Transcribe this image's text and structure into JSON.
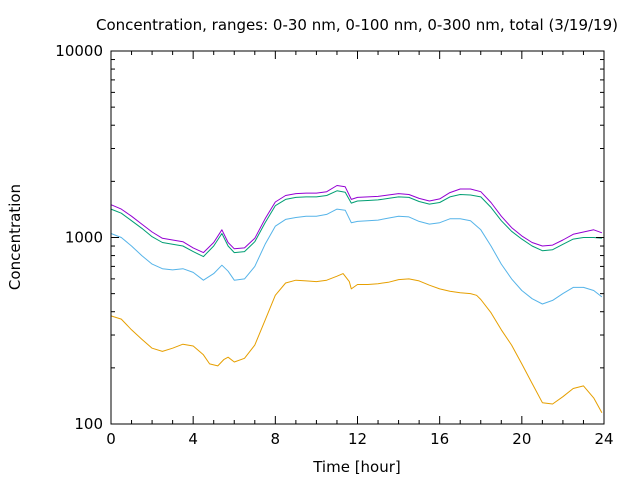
{
  "chart_data": {
    "type": "line",
    "title": "Concentration, ranges: 0-30 nm, 0-100 nm, 0-300 nm, total (3/19/19)",
    "xlabel": "Time [hour]",
    "ylabel": "Concentration",
    "xlim": [
      0,
      24
    ],
    "ylim": [
      100,
      10000
    ],
    "yscale": "log",
    "grid": false,
    "xticks": [
      "0",
      "4",
      "8",
      "12",
      "16",
      "20",
      "24"
    ],
    "yticks": [
      "100",
      "1000",
      "10000"
    ],
    "series": [
      {
        "color": "#e69f00",
        "x": [
          0,
          0.5,
          1,
          1.5,
          2,
          2.5,
          3,
          3.5,
          4,
          4.5,
          4.8,
          5.2,
          5.5,
          5.7,
          6,
          6.5,
          7,
          7.5,
          8,
          8.5,
          9,
          9.5,
          10,
          10.5,
          11,
          11.3,
          11.6,
          11.7,
          12,
          12.5,
          13,
          13.5,
          14,
          14.5,
          15,
          15.5,
          16,
          16.5,
          17,
          17.5,
          17.8,
          18,
          18.5,
          19,
          19.5,
          20,
          20.5,
          21,
          21.5,
          22,
          22.5,
          23,
          23.5,
          23.9
        ],
        "values": [
          380,
          365,
          320,
          285,
          255,
          245,
          255,
          268,
          262,
          235,
          210,
          205,
          222,
          228,
          215,
          225,
          265,
          360,
          490,
          570,
          590,
          585,
          580,
          590,
          620,
          640,
          580,
          530,
          560,
          560,
          565,
          575,
          595,
          600,
          585,
          555,
          530,
          515,
          505,
          500,
          490,
          465,
          395,
          320,
          265,
          210,
          165,
          130,
          128,
          140,
          155,
          160,
          138,
          115
        ]
      },
      {
        "color": "#56b4e9",
        "x": [
          0,
          0.5,
          1,
          1.5,
          2,
          2.5,
          3,
          3.5,
          4,
          4.5,
          5,
          5.4,
          5.7,
          6,
          6.5,
          7,
          7.5,
          8,
          8.5,
          9,
          9.5,
          10,
          10.5,
          11,
          11.4,
          11.7,
          12,
          12.5,
          13,
          13.5,
          14,
          14.5,
          15,
          15.5,
          16,
          16.5,
          17,
          17.5,
          18,
          18.5,
          19,
          19.5,
          20,
          20.5,
          21,
          21.5,
          22,
          22.5,
          23,
          23.5,
          23.9
        ],
        "values": [
          1050,
          1000,
          900,
          800,
          720,
          680,
          670,
          680,
          650,
          590,
          640,
          710,
          660,
          590,
          600,
          700,
          920,
          1150,
          1250,
          1280,
          1300,
          1300,
          1330,
          1420,
          1400,
          1200,
          1220,
          1230,
          1240,
          1270,
          1300,
          1290,
          1220,
          1180,
          1200,
          1260,
          1260,
          1230,
          1100,
          900,
          720,
          600,
          520,
          470,
          440,
          460,
          500,
          540,
          540,
          520,
          480
        ]
      },
      {
        "color": "#009e73",
        "x": [
          0,
          0.5,
          1,
          1.5,
          2,
          2.5,
          3,
          3.5,
          4,
          4.5,
          5,
          5.4,
          5.7,
          6,
          6.5,
          7,
          7.5,
          8,
          8.5,
          9,
          9.5,
          10,
          10.5,
          11,
          11.4,
          11.7,
          12,
          12.5,
          13,
          13.5,
          14,
          14.5,
          15,
          15.5,
          16,
          16.5,
          17,
          17.5,
          18,
          18.5,
          19,
          19.5,
          20,
          20.5,
          21,
          21.5,
          22,
          22.5,
          23,
          23.5,
          23.9
        ],
        "values": [
          1420,
          1350,
          1230,
          1120,
          1010,
          940,
          920,
          900,
          840,
          790,
          900,
          1050,
          900,
          830,
          840,
          950,
          1200,
          1480,
          1600,
          1640,
          1650,
          1650,
          1680,
          1780,
          1750,
          1530,
          1570,
          1580,
          1590,
          1620,
          1650,
          1640,
          1560,
          1510,
          1540,
          1650,
          1700,
          1690,
          1650,
          1450,
          1230,
          1080,
          980,
          900,
          850,
          860,
          920,
          980,
          1000,
          1000,
          990
        ]
      },
      {
        "color": "#9400d3",
        "x": [
          0,
          0.5,
          1,
          1.5,
          2,
          2.5,
          3,
          3.5,
          4,
          4.5,
          5,
          5.4,
          5.7,
          6,
          6.5,
          7,
          7.5,
          8,
          8.5,
          9,
          9.5,
          10,
          10.5,
          11,
          11.4,
          11.7,
          12,
          12.5,
          13,
          13.5,
          14,
          14.5,
          15,
          15.5,
          16,
          16.5,
          17,
          17.5,
          18,
          18.5,
          19,
          19.5,
          20,
          20.5,
          21,
          21.5,
          22,
          22.5,
          23,
          23.5,
          23.9
        ],
        "values": [
          1500,
          1420,
          1300,
          1180,
          1070,
          990,
          970,
          950,
          880,
          830,
          940,
          1100,
          940,
          870,
          880,
          990,
          1260,
          1550,
          1680,
          1720,
          1730,
          1730,
          1760,
          1900,
          1870,
          1600,
          1640,
          1650,
          1660,
          1690,
          1720,
          1700,
          1620,
          1570,
          1610,
          1740,
          1820,
          1820,
          1760,
          1540,
          1300,
          1130,
          1020,
          940,
          900,
          910,
          970,
          1040,
          1070,
          1100,
          1060
        ]
      }
    ]
  }
}
